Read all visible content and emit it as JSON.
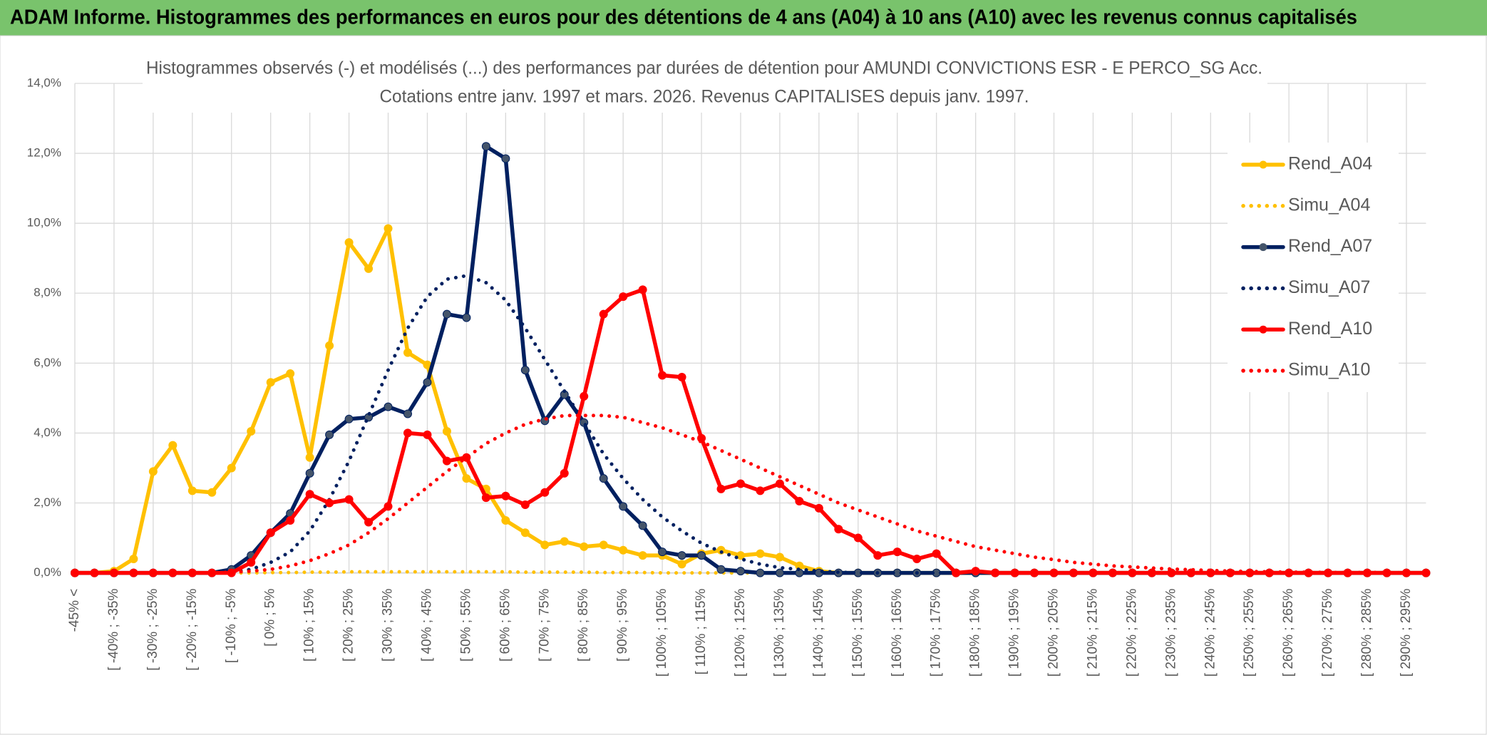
{
  "header": {
    "title": "ADAM Informe. Histogrammes des performances en euros pour des détentions de 4 ans (A04) à 10 ans (A10) avec les revenus connus capitalisés"
  },
  "chart_data": {
    "type": "line",
    "title": "Histogrammes observés (-) et modélisés (...) des performances par durées de détention pour AMUNDI CONVICTIONS ESR - E PERCO_SG Acc.",
    "subtitle": "Cotations entre janv. 1997 et mars. 2026. Revenus CAPITALISES depuis janv. 1997.",
    "categories": [
      "-45% <",
      null,
      "[ -40% ; -35%",
      null,
      "[ -30% ; -25%",
      null,
      "[ -20% ; -15%",
      null,
      "[ -10% ; -5%",
      null,
      "[ 0% ; 5%",
      null,
      "[ 10% ; 15%",
      null,
      "[ 20% ; 25%",
      null,
      "[ 30% ; 35%",
      null,
      "[ 40% ; 45%",
      null,
      "[ 50% ; 55%",
      null,
      "[ 60% ; 65%",
      null,
      "[ 70% ; 75%",
      null,
      "[ 80% ; 85%",
      null,
      "[ 90% ; 95%",
      null,
      "[ 100% ; 105%",
      null,
      "[ 110% ; 115%",
      null,
      "[ 120% ; 125%",
      null,
      "[ 130% ; 135%",
      null,
      "[ 140% ; 145%",
      null,
      "[ 150% ; 155%",
      null,
      "[ 160% ; 165%",
      null,
      "[ 170% ; 175%",
      null,
      "[ 180% ; 185%",
      null,
      "[ 190% ; 195%",
      null,
      "[ 200% ; 205%",
      null,
      "[ 210% ; 215%",
      null,
      "[ 220% ; 225%",
      null,
      "[ 230% ; 235%",
      null,
      "[ 240% ; 245%",
      null,
      "[ 250% ; 255%",
      null,
      "[ 260% ; 265%",
      null,
      "[ 270% ; 275%",
      null,
      "[ 280% ; 285%",
      null,
      "[ 290% ; 295%",
      null
    ],
    "series": [
      {
        "name": "Rend_A04",
        "color": "#FFC000",
        "dash": "solid",
        "marker": true,
        "values": [
          0,
          0,
          0.05,
          0.4,
          2.9,
          3.65,
          2.35,
          2.3,
          3.0,
          4.05,
          5.45,
          5.7,
          3.3,
          6.5,
          9.45,
          8.7,
          9.85,
          6.3,
          5.95,
          4.05,
          2.7,
          2.4,
          1.5,
          1.15,
          0.8,
          0.9,
          0.75,
          0.8,
          0.65,
          0.5,
          0.5,
          0.25,
          0.55,
          0.65,
          0.5,
          0.55,
          0.45,
          0.2,
          0.05,
          0,
          0,
          0,
          0,
          0,
          0,
          0,
          0,
          0,
          0,
          0,
          0,
          0,
          0,
          0,
          0,
          0,
          0,
          0,
          0,
          0,
          0,
          0,
          0,
          0,
          0,
          0,
          0,
          0,
          0,
          0
        ]
      },
      {
        "name": "Simu_A04",
        "color": "#FFC000",
        "dash": "dot",
        "marker": false,
        "values": [
          0,
          0,
          0,
          0,
          0,
          0,
          0,
          0,
          0,
          0,
          0.01,
          0.01,
          0.02,
          0.02,
          0.03,
          0.03,
          0.03,
          0.03,
          0.03,
          0.03,
          0.03,
          0.03,
          0.03,
          0.02,
          0.02,
          0.02,
          0.02,
          0.01,
          0.01,
          0.01,
          0,
          0,
          0,
          0,
          0,
          0,
          0,
          0,
          0,
          0,
          0,
          0,
          0,
          0,
          0,
          0,
          0,
          0,
          0,
          0,
          0,
          0,
          0,
          0,
          0,
          0,
          0,
          0,
          0,
          0,
          0,
          0,
          0,
          0,
          0,
          0,
          0,
          0,
          0,
          0
        ]
      },
      {
        "name": "Rend_A07",
        "color": "#002060",
        "dash": "solid",
        "marker": true,
        "values": [
          0,
          0,
          0,
          0,
          0,
          0,
          0,
          0,
          0.1,
          0.5,
          1.15,
          1.7,
          2.85,
          3.95,
          4.4,
          4.45,
          4.75,
          4.55,
          5.45,
          7.4,
          7.3,
          12.2,
          11.85,
          5.8,
          4.35,
          5.1,
          4.3,
          2.7,
          1.9,
          1.35,
          0.6,
          0.5,
          0.5,
          0.1,
          0.05,
          0,
          0,
          0,
          0,
          0,
          0,
          0,
          0,
          0,
          0,
          0,
          0,
          0,
          0,
          0,
          0,
          0,
          0,
          0,
          0,
          0,
          0,
          0,
          0,
          0,
          0,
          0,
          0,
          0,
          0,
          0,
          0,
          0,
          0,
          0
        ]
      },
      {
        "name": "Simu_A07",
        "color": "#002060",
        "dash": "dot",
        "marker": false,
        "values": [
          0,
          0,
          0,
          0,
          0,
          0,
          0,
          0,
          0.02,
          0.1,
          0.3,
          0.6,
          1.2,
          2.1,
          3.2,
          4.5,
          5.8,
          7.0,
          7.9,
          8.4,
          8.5,
          8.3,
          7.8,
          7.0,
          6.1,
          5.2,
          4.3,
          3.4,
          2.7,
          2.1,
          1.6,
          1.2,
          0.85,
          0.6,
          0.4,
          0.25,
          0.15,
          0.1,
          0.05,
          0.02,
          0,
          0,
          0,
          0,
          0,
          0,
          0,
          0,
          0,
          0,
          0,
          0,
          0,
          0,
          0,
          0,
          0,
          0,
          0,
          0,
          0,
          0,
          0,
          0,
          0,
          0,
          0,
          0,
          0,
          0
        ]
      },
      {
        "name": "Rend_A10",
        "color": "#FF0000",
        "dash": "solid",
        "marker": true,
        "values": [
          0,
          0,
          0,
          0,
          0,
          0,
          0,
          0,
          0,
          0.3,
          1.15,
          1.5,
          2.25,
          2.0,
          2.1,
          1.45,
          1.9,
          4.0,
          3.95,
          3.2,
          3.3,
          2.15,
          2.2,
          1.95,
          2.3,
          2.85,
          5.05,
          7.4,
          7.9,
          8.1,
          5.65,
          5.6,
          3.85,
          2.4,
          2.55,
          2.35,
          2.55,
          2.05,
          1.85,
          1.25,
          1.0,
          0.5,
          0.6,
          0.4,
          0.55,
          0,
          0.05,
          0,
          0,
          0,
          0,
          0,
          0,
          0,
          0,
          0,
          0,
          0,
          0,
          0,
          0,
          0,
          0,
          0,
          0,
          0,
          0,
          0,
          0,
          0
        ]
      },
      {
        "name": "Simu_A10",
        "color": "#FF0000",
        "dash": "dot",
        "marker": false,
        "values": [
          0,
          0,
          0,
          0,
          0,
          0,
          0,
          0,
          0.02,
          0.05,
          0.1,
          0.2,
          0.35,
          0.55,
          0.8,
          1.15,
          1.55,
          2.0,
          2.45,
          2.9,
          3.3,
          3.7,
          4.0,
          4.25,
          4.4,
          4.5,
          4.5,
          4.5,
          4.45,
          4.3,
          4.15,
          3.95,
          3.75,
          3.5,
          3.25,
          3.0,
          2.75,
          2.5,
          2.25,
          2.0,
          1.8,
          1.6,
          1.4,
          1.2,
          1.05,
          0.9,
          0.75,
          0.65,
          0.55,
          0.45,
          0.38,
          0.3,
          0.25,
          0.2,
          0.17,
          0.14,
          0.11,
          0.09,
          0.07,
          0.05,
          0.04,
          0.03,
          0.02,
          0.02,
          0.01,
          0.01,
          0.01,
          0.01,
          0,
          0
        ]
      }
    ],
    "ylim": [
      0,
      14
    ],
    "yticks": [
      {
        "value": 0,
        "label": "0,0%"
      },
      {
        "value": 2,
        "label": "2,0%"
      },
      {
        "value": 4,
        "label": "4,0%"
      },
      {
        "value": 6,
        "label": "6,0%"
      },
      {
        "value": 8,
        "label": "8,0%"
      },
      {
        "value": 10,
        "label": "10,0%"
      },
      {
        "value": 12,
        "label": "12,0%"
      },
      {
        "value": 14,
        "label": "14,0%"
      }
    ],
    "grid": true,
    "legend": "right"
  }
}
